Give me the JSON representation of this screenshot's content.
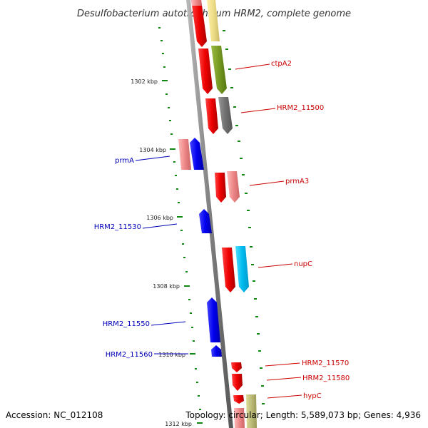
{
  "title": "Desulfobacterium autotrophicum HRM2, complete genome",
  "footer": {
    "accession": "Accession: NC_012108",
    "summary": "Topology: circular; Length: 5,589,073 bp; Genes: 4,936"
  },
  "scale_ticks": [
    "1302 kbp",
    "1304 kbp",
    "1306 kbp",
    "1308 kbp",
    "1310 kbp",
    "1312 kbp"
  ],
  "genes": [
    {
      "name": "ctpA2",
      "color": "#cc0000"
    },
    {
      "name": "HRM2_11500",
      "color": "#cc0000"
    },
    {
      "name": "prmA",
      "color": "#0000bb"
    },
    {
      "name": "prmA3",
      "color": "#cc0000"
    },
    {
      "name": "HRM2_11530",
      "color": "#0000bb"
    },
    {
      "name": "nupC",
      "color": "#cc0000"
    },
    {
      "name": "HRM2_11550",
      "color": "#0000bb"
    },
    {
      "name": "HRM2_11560",
      "color": "#0000bb"
    },
    {
      "name": "HRM2_11570",
      "color": "#cc0000"
    },
    {
      "name": "HRM2_11580",
      "color": "#cc0000"
    },
    {
      "name": "hypC",
      "color": "#cc0000"
    }
  ],
  "colors": {
    "backbone": "#808080",
    "forward_gene": "#ee0000",
    "reverse_gene": "#0000ee",
    "pink_gene": "#ee8888",
    "olive_gene": "#779922",
    "yellow_gene": "#eedd88",
    "gray_gene": "#707070",
    "cyan_gene": "#00bbee",
    "khaki_gene": "#bbbb77",
    "ruler": "#118811"
  }
}
